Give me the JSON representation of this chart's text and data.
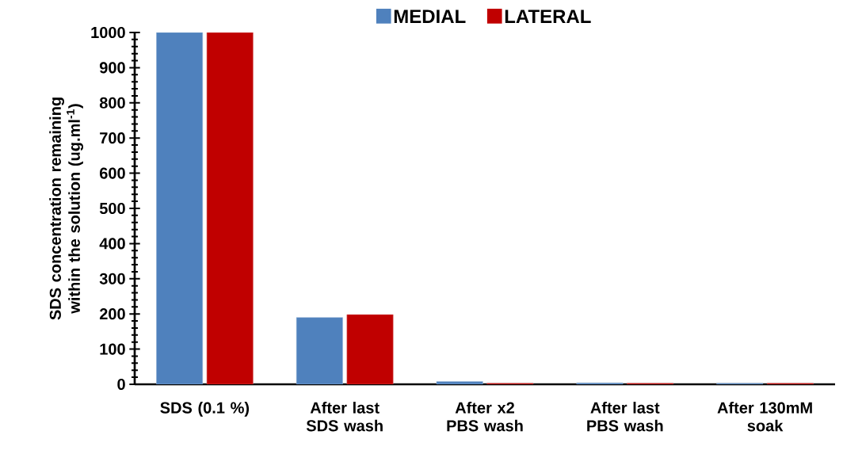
{
  "chart_data": {
    "type": "bar",
    "categories": [
      "SDS (0.1 %)",
      "After last SDS wash",
      "After x2 PBS wash",
      "After last PBS wash",
      "After 130mM soak"
    ],
    "ylabel": "SDS concentration remaining within the solution (ug.ml$^{-1}$)",
    "series": [
      {
        "name": "MEDIAL",
        "color": "#4f81bd",
        "values": [
          1000,
          190,
          8,
          4,
          3
        ]
      },
      {
        "name": "LATERAL",
        "color": "#c00000",
        "values": [
          1000,
          198,
          3,
          3,
          3
        ]
      }
    ],
    "ylim": [
      0,
      1000
    ],
    "yticks": [
      0,
      100,
      200,
      300,
      400,
      500,
      600,
      700,
      800,
      900,
      1000
    ],
    "legend": "top",
    "grid": false
  }
}
